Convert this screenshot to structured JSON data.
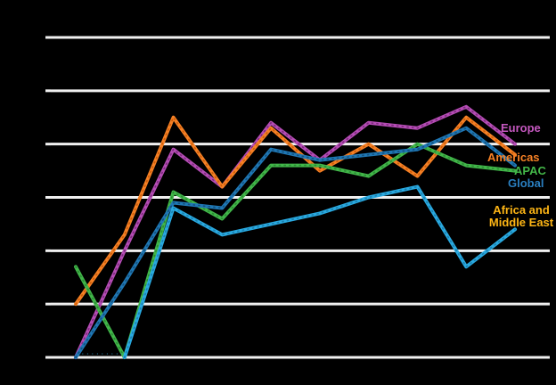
{
  "chart_data": {
    "type": "line",
    "title": "",
    "x": [
      1,
      2,
      3,
      4,
      5,
      6,
      7,
      8,
      9,
      10
    ],
    "x_tick_labels_visible": false,
    "y_tick_labels_visible": false,
    "ylim": [
      0,
      60
    ],
    "grid": true,
    "gridline_values": [
      0,
      10,
      20,
      30,
      40,
      50,
      60
    ],
    "legend_position": "right-end-labels",
    "background_color": "#000000",
    "gridline_color": "#f0f0f0",
    "series": [
      {
        "name": "Europe",
        "line_color": "#b44cb4",
        "dot_color": "#7c2a7c",
        "label_color": "#c558c0",
        "values": [
          0,
          20,
          39,
          32,
          44,
          37,
          44,
          43,
          47,
          40
        ]
      },
      {
        "name": "Americas",
        "line_color": "#f58025",
        "dot_color": "#cc5c08",
        "label_color": "#f58025",
        "values": [
          10,
          23,
          45,
          32,
          43,
          35,
          40,
          34,
          45,
          38
        ]
      },
      {
        "name": "APAC",
        "line_color": "#41b649",
        "dot_color": "#2b8a33",
        "label_color": "#44b749",
        "values": [
          17,
          0,
          31,
          26,
          36,
          36,
          34,
          40,
          36,
          35
        ]
      },
      {
        "name": "Global",
        "line_color": "#1f77b4",
        "dot_color": "#14517d",
        "label_color": "#2a7fc0",
        "values": [
          0,
          14,
          29,
          28,
          39,
          37,
          38,
          39,
          43,
          36
        ]
      },
      {
        "name": "Africa and Middle East",
        "line_color": "#29a9e0",
        "dot_color": "#1b7fad",
        "label_color": "#fdb515",
        "values": [
          null,
          0,
          28,
          23,
          25,
          27,
          30,
          32,
          17,
          24
        ]
      }
    ],
    "baseline_annotation": {
      "text": "··········",
      "color": "#2da0d8"
    }
  }
}
